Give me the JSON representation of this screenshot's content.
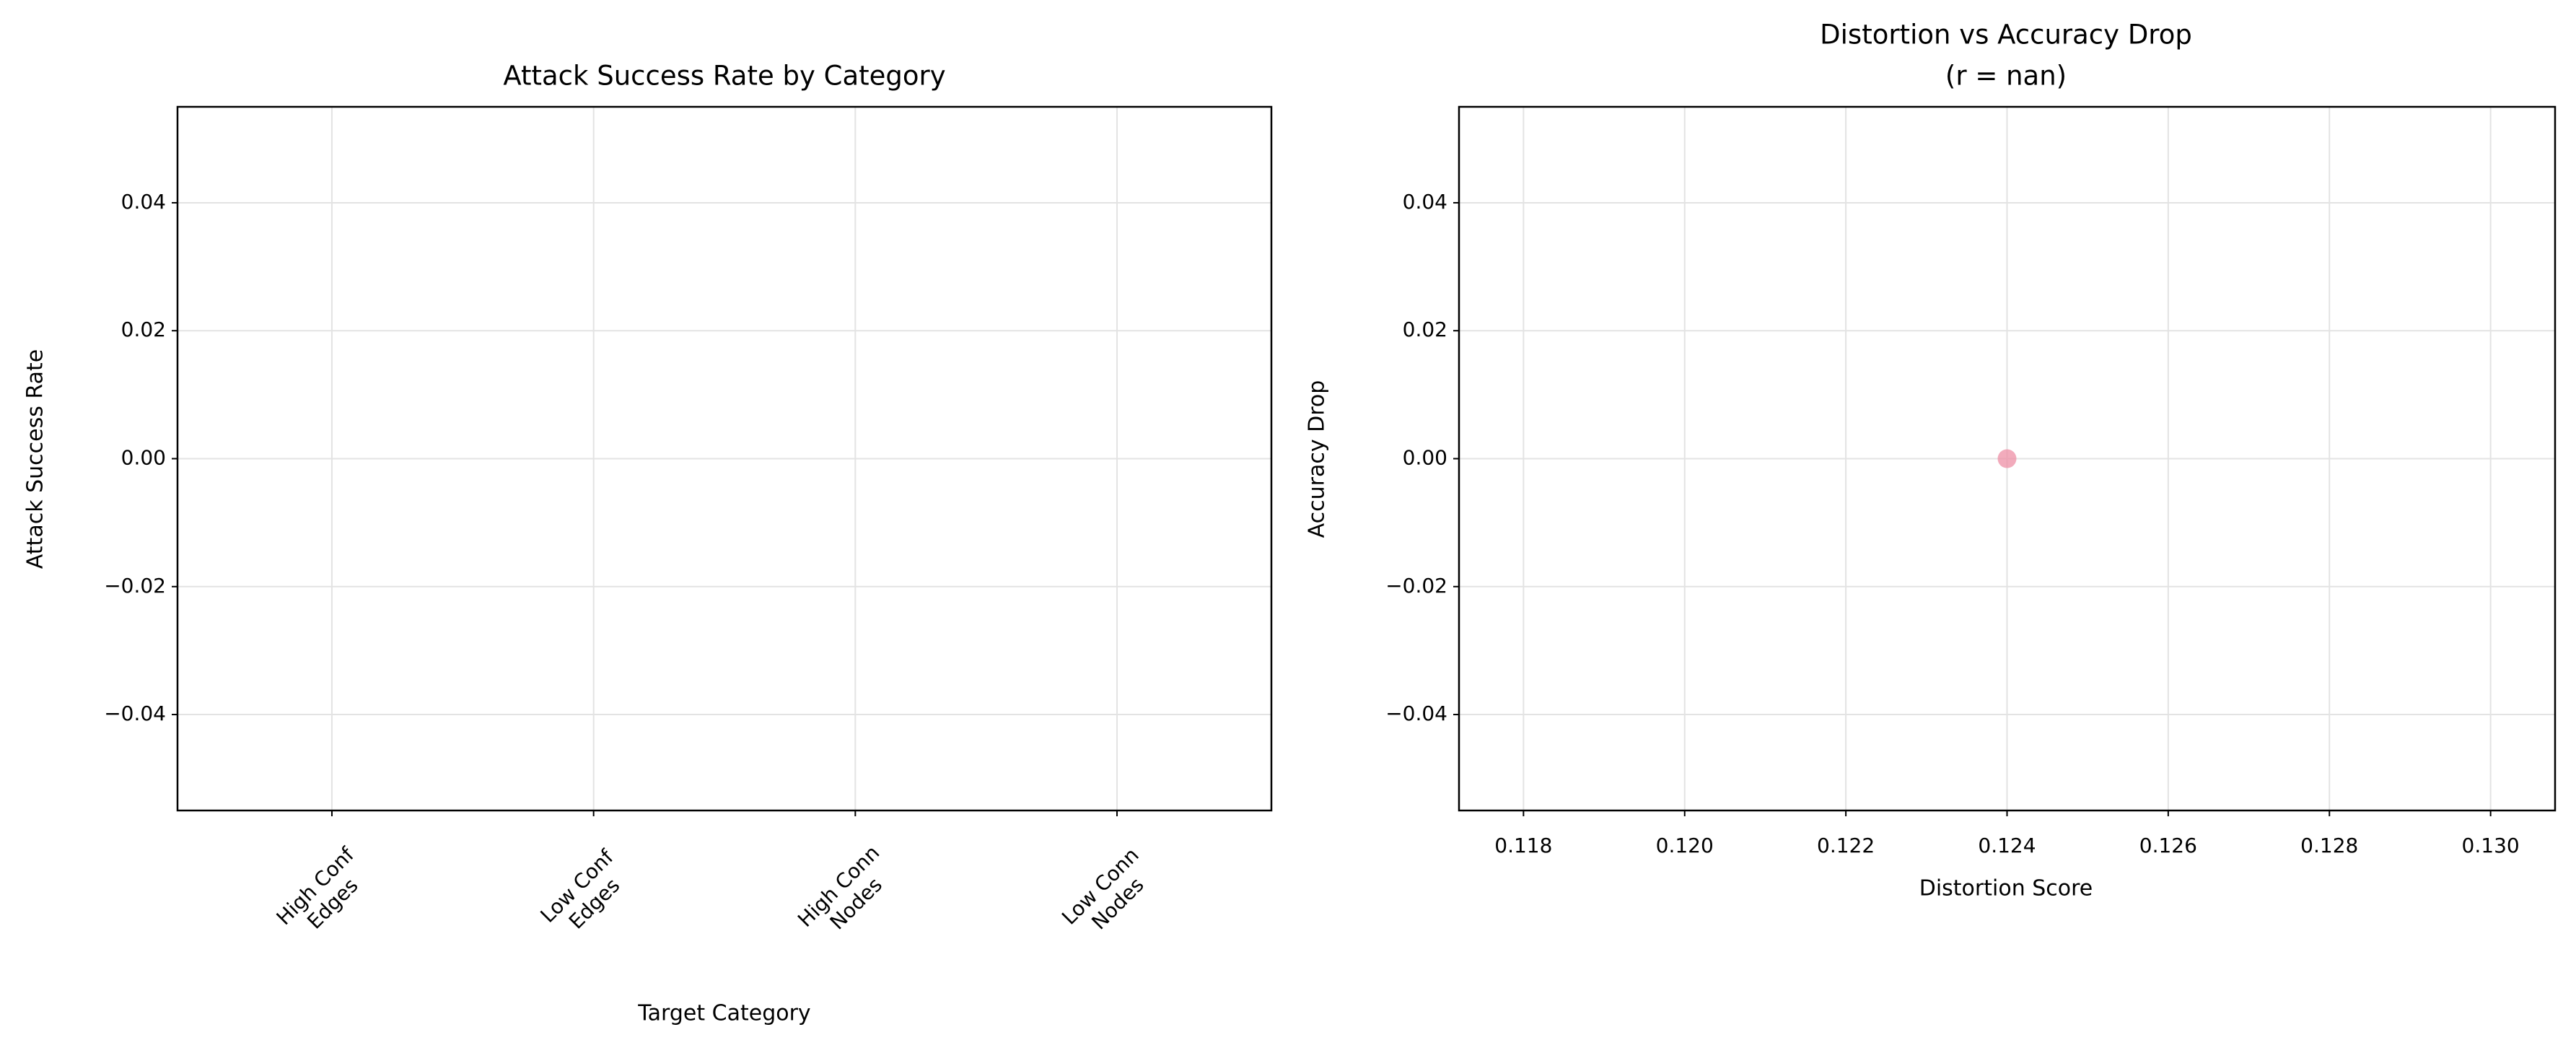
{
  "chart_data": [
    {
      "type": "bar",
      "title": "Attack Success Rate by Category",
      "xlabel": "Target Category",
      "ylabel": "Attack Success Rate",
      "categories": [
        [
          "High Conf",
          "Edges"
        ],
        [
          "Low Conf",
          "Edges"
        ],
        [
          "High Conn",
          "Nodes"
        ],
        [
          "Low Conn",
          "Nodes"
        ]
      ],
      "values": [
        0,
        0,
        0,
        0
      ],
      "color": "#4c72b0",
      "ylim": [
        -0.055,
        0.055
      ],
      "yticks": [
        {
          "value": -0.04,
          "label": "−0.04"
        },
        {
          "value": -0.02,
          "label": "−0.02"
        },
        {
          "value": 0,
          "label": "0.00"
        },
        0.02,
        0.04
      ],
      "grid": true
    },
    {
      "type": "scatter",
      "title": [
        "Distortion vs Accuracy Drop",
        "(r = nan)"
      ],
      "xlabel": "Distortion Score",
      "ylabel": "Accuracy Drop",
      "x": [
        0.124
      ],
      "values": [
        0
      ],
      "color": "#ee8fa6",
      "xlim": [
        0.1172,
        0.1308
      ],
      "ylim": [
        -0.055,
        0.055
      ],
      "xticks": [
        0.118,
        {
          "value": 0.12,
          "label": "0.120"
        },
        0.122,
        0.124,
        0.126,
        0.128,
        {
          "value": 0.13,
          "label": "0.130"
        }
      ],
      "yticks": [
        {
          "value": -0.04,
          "label": "−0.04"
        },
        {
          "value": -0.02,
          "label": "−0.02"
        },
        {
          "value": 0,
          "label": "0.00"
        },
        0.02,
        0.04
      ],
      "grid": true
    }
  ]
}
